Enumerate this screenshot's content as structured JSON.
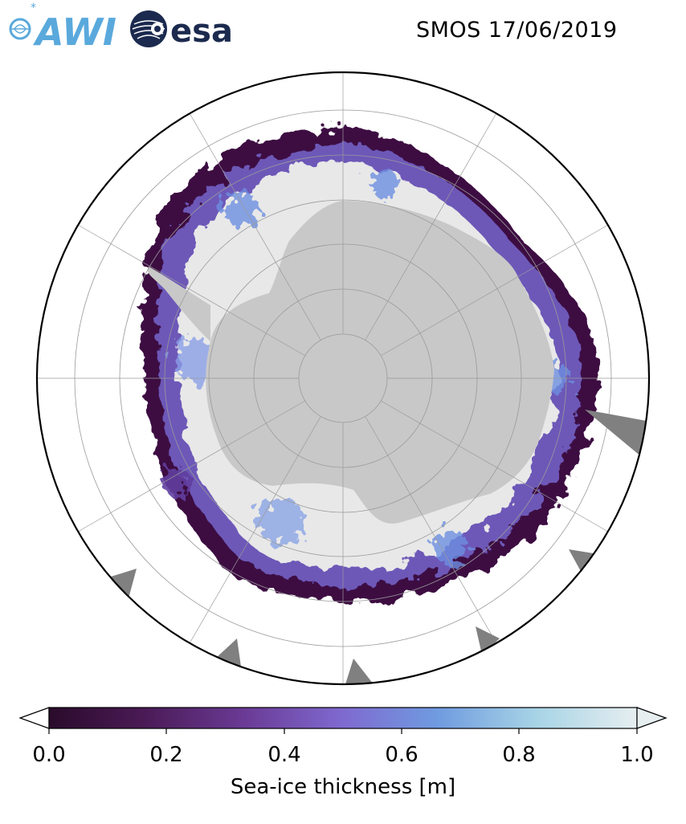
{
  "header": {
    "title": "SMOS 17/06/2019",
    "logos": [
      {
        "name": "AWI",
        "text": "AWI",
        "color": "#5aa9dc"
      },
      {
        "name": "esa",
        "text": "esa",
        "color": "#1b2a4e"
      }
    ]
  },
  "map": {
    "projection": "south-polar-stereographic",
    "colors": {
      "ocean": "#ffffff",
      "land": "#c8c8c8",
      "land_edge": "#7f7f7f",
      "ice_thin": "#2b0a2e",
      "ice_mid": "#6a4aa8",
      "ice_thick": "#e8e8e8"
    }
  },
  "colorbar": {
    "label": "Sea-ice thickness [m]",
    "ticks": [
      "0.0",
      "0.2",
      "0.4",
      "0.6",
      "0.8",
      "1.0"
    ],
    "range": [
      0.0,
      1.0
    ],
    "colors": [
      "#2a0b2b",
      "#4a1a55",
      "#6a3a95",
      "#7f6ad0",
      "#6f9be0",
      "#a8d4e6",
      "#e6eef0"
    ]
  }
}
